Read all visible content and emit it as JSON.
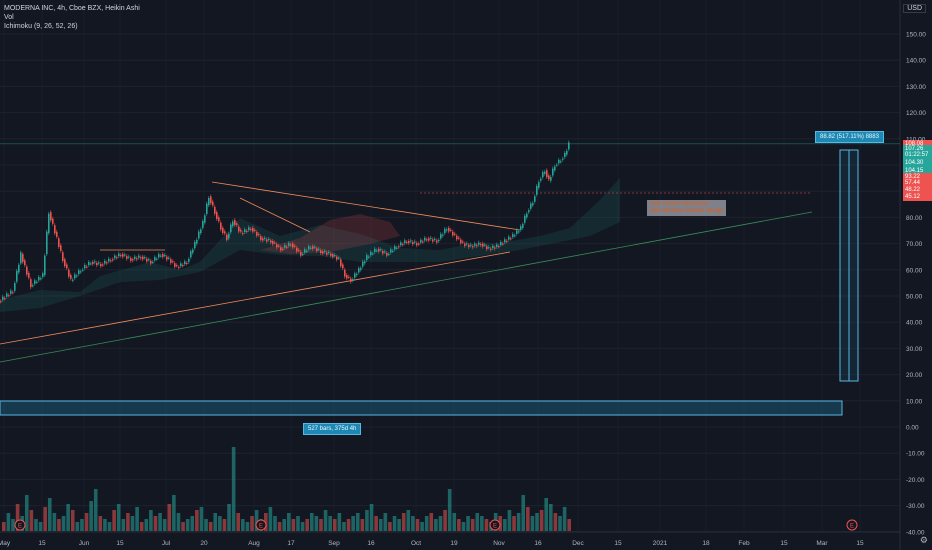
{
  "legend": {
    "title": "MODERNA INC, 4h, Cboe BZX, Heikin Ashi",
    "vol": "Vol",
    "ichimoku": "Ichimoku (9, 26, 52, 26)"
  },
  "currency": "USD",
  "annotations": {
    "note_line1": "wait volume decrease",
    "note_line2": "and demand sustain design",
    "bars_range": "527 bars, 375d 4h",
    "measure": "88.82 (517.11%) 8883"
  },
  "price_tags": [
    {
      "label": "108.08",
      "color": "#ef5350",
      "value": 108.08
    },
    {
      "label": "107.26",
      "color": "#26a69a",
      "value": 106.2
    },
    {
      "label": "01:22:57",
      "color": "#26a69a",
      "value": 103.8
    },
    {
      "label": "104.30",
      "color": "#26a69a",
      "value": 100.6
    },
    {
      "label": "104.15",
      "color": "#26a69a",
      "value": 97.8
    },
    {
      "label": "93.22",
      "color": "#ef5350",
      "value": 95.4
    },
    {
      "label": "57.44",
      "color": "#ef5350",
      "value": 93.0
    },
    {
      "label": "48.22",
      "color": "#ef5350",
      "value": 90.4
    },
    {
      "label": "45.12",
      "color": "#ef5350",
      "value": 87.6
    }
  ],
  "icons": {
    "settings": "gear-icon",
    "earnings": "earnings-marker-icon"
  },
  "earnings_marker": "E",
  "chart_data": {
    "type": "candlestick",
    "title": "MODERNA INC, 4h, Cboe BZX, Heikin Ashi",
    "y_ticks": [
      150.0,
      140.0,
      130.0,
      120.0,
      110.0,
      100.0,
      90.0,
      80.0,
      70.0,
      60.0,
      50.0,
      40.0,
      30.0,
      20.0,
      10.0,
      0.0,
      -10.0,
      -20.0,
      -30.0,
      -40.0
    ],
    "ylim": [
      -42,
      160
    ],
    "x_labels": [
      "May",
      "15",
      "Jun",
      "15",
      "Jul",
      "20",
      "Aug",
      "17",
      "Sep",
      "16",
      "Oct",
      "19",
      "Nov",
      "16",
      "Dec",
      "15",
      "2021",
      "18",
      "Feb",
      "15",
      "Mar",
      "15"
    ],
    "price_path": [
      {
        "x": 0,
        "y": 48
      },
      {
        "x": 14,
        "y": 52
      },
      {
        "x": 22,
        "y": 66
      },
      {
        "x": 32,
        "y": 54
      },
      {
        "x": 44,
        "y": 58
      },
      {
        "x": 50,
        "y": 82
      },
      {
        "x": 58,
        "y": 72
      },
      {
        "x": 64,
        "y": 64
      },
      {
        "x": 72,
        "y": 56
      },
      {
        "x": 82,
        "y": 60
      },
      {
        "x": 92,
        "y": 63
      },
      {
        "x": 102,
        "y": 62
      },
      {
        "x": 112,
        "y": 64
      },
      {
        "x": 122,
        "y": 66
      },
      {
        "x": 132,
        "y": 64
      },
      {
        "x": 142,
        "y": 65
      },
      {
        "x": 152,
        "y": 63
      },
      {
        "x": 162,
        "y": 66
      },
      {
        "x": 170,
        "y": 64
      },
      {
        "x": 178,
        "y": 61
      },
      {
        "x": 188,
        "y": 63
      },
      {
        "x": 196,
        "y": 70
      },
      {
        "x": 204,
        "y": 78
      },
      {
        "x": 210,
        "y": 88
      },
      {
        "x": 216,
        "y": 82
      },
      {
        "x": 222,
        "y": 76
      },
      {
        "x": 228,
        "y": 72
      },
      {
        "x": 234,
        "y": 79
      },
      {
        "x": 242,
        "y": 74
      },
      {
        "x": 252,
        "y": 76
      },
      {
        "x": 262,
        "y": 72
      },
      {
        "x": 272,
        "y": 71
      },
      {
        "x": 282,
        "y": 68
      },
      {
        "x": 292,
        "y": 70
      },
      {
        "x": 302,
        "y": 66
      },
      {
        "x": 312,
        "y": 69
      },
      {
        "x": 322,
        "y": 67
      },
      {
        "x": 332,
        "y": 66
      },
      {
        "x": 340,
        "y": 64
      },
      {
        "x": 346,
        "y": 58
      },
      {
        "x": 352,
        "y": 56
      },
      {
        "x": 360,
        "y": 60
      },
      {
        "x": 368,
        "y": 65
      },
      {
        "x": 378,
        "y": 68
      },
      {
        "x": 388,
        "y": 66
      },
      {
        "x": 398,
        "y": 69
      },
      {
        "x": 408,
        "y": 71
      },
      {
        "x": 418,
        "y": 70
      },
      {
        "x": 428,
        "y": 72
      },
      {
        "x": 438,
        "y": 71
      },
      {
        "x": 448,
        "y": 76
      },
      {
        "x": 456,
        "y": 73
      },
      {
        "x": 464,
        "y": 70
      },
      {
        "x": 472,
        "y": 69
      },
      {
        "x": 482,
        "y": 70
      },
      {
        "x": 490,
        "y": 68
      },
      {
        "x": 498,
        "y": 69
      },
      {
        "x": 506,
        "y": 71
      },
      {
        "x": 514,
        "y": 73
      },
      {
        "x": 522,
        "y": 76
      },
      {
        "x": 528,
        "y": 82
      },
      {
        "x": 534,
        "y": 86
      },
      {
        "x": 540,
        "y": 94
      },
      {
        "x": 546,
        "y": 98
      },
      {
        "x": 550,
        "y": 94
      },
      {
        "x": 556,
        "y": 100
      },
      {
        "x": 562,
        "y": 102
      },
      {
        "x": 566,
        "y": 104
      },
      {
        "x": 570,
        "y": 108
      }
    ],
    "volume_series": [
      3,
      6,
      4,
      9,
      5,
      12,
      7,
      4,
      3,
      8,
      11,
      6,
      4,
      5,
      9,
      7,
      3,
      4,
      6,
      10,
      14,
      5,
      4,
      3,
      7,
      9,
      4,
      6,
      5,
      8,
      3,
      4,
      7,
      5,
      6,
      4,
      9,
      12,
      6,
      3,
      4,
      5,
      7,
      8,
      4,
      3,
      6,
      5,
      4,
      9,
      28,
      6,
      4,
      3,
      5,
      7,
      4,
      6,
      8,
      5,
      3,
      4,
      6,
      4,
      5,
      3,
      4,
      6,
      5,
      4,
      7,
      5,
      4,
      6,
      3,
      4,
      5,
      6,
      4,
      7,
      9,
      5,
      4,
      6,
      3,
      5,
      4,
      6,
      7,
      5,
      4,
      3,
      5,
      6,
      4,
      5,
      7,
      14,
      6,
      4,
      3,
      5,
      4,
      6,
      5,
      4,
      3,
      6,
      5,
      4,
      7,
      5,
      6,
      12,
      8,
      5,
      6,
      7,
      11,
      9,
      6,
      5,
      8,
      4
    ]
  }
}
